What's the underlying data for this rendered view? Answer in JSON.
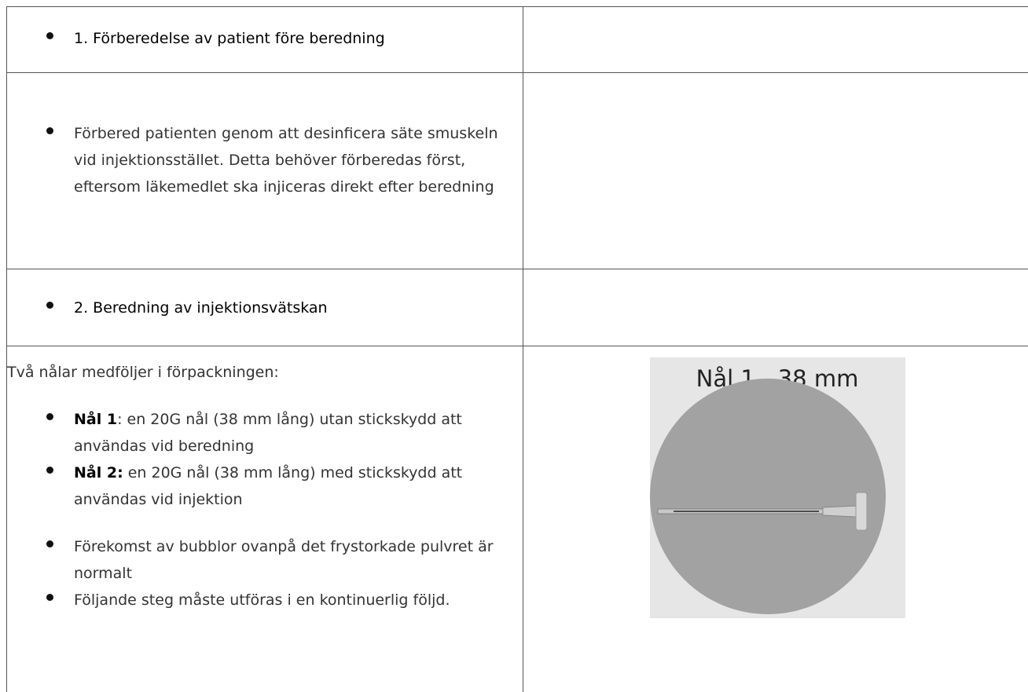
{
  "table": {
    "rows": [
      {
        "left": {
          "bullets": [
            "1. Förberedelse av patient före beredning"
          ]
        }
      },
      {
        "left": {
          "bullets": [
            "Förbered patienten genom att desinficera säte smuskeln vid injektionsstället. Detta behöver förberedas först, eftersom läkemedlet ska injiceras direkt efter beredning"
          ]
        }
      },
      {
        "left": {
          "bullets": [
            "2. Beredning av injektionsvätskan"
          ]
        }
      },
      {
        "left": {
          "intro": "Två nålar medföljer i förpackningen:",
          "needles": [
            {
              "bold": "Nål 1",
              "text": ": en 20G nål (38 mm lång) utan stickskydd att användas vid beredning"
            },
            {
              "bold": "Nål 2:",
              "text": " en 20G nål (38 mm lång) med stickskydd att användas vid injektion"
            }
          ],
          "notes": [
            "Förekomst av bubblor ovanpå det frystorkade pulvret är normalt",
            "Följande steg måste utföras i en kontinuerlig följd."
          ]
        },
        "right": {
          "image_caption": "Nål 1 - 38 mm"
        }
      }
    ]
  }
}
